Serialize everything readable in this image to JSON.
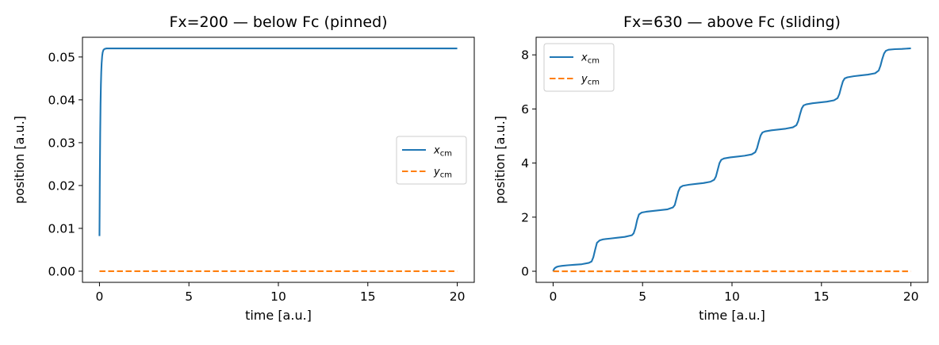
{
  "chart_data": [
    {
      "type": "line",
      "title": "Fx=200  — below Fc (pinned)",
      "xlabel": "time  [a.u.]",
      "ylabel": "position  [a.u.]",
      "xlim": [
        -0.95,
        20.95
      ],
      "ylim": [
        -0.0026,
        0.0546
      ],
      "xticks": [
        0,
        5,
        10,
        15,
        20
      ],
      "xtick_labels": [
        "0",
        "5",
        "10",
        "15",
        "20"
      ],
      "yticks": [
        0,
        0.01,
        0.02,
        0.03,
        0.04,
        0.05
      ],
      "ytick_labels": [
        "0.00",
        "0.01",
        "0.02",
        "0.03",
        "0.04",
        "0.05"
      ],
      "grid": false,
      "legend_position": "center-right",
      "series": [
        {
          "name": "x",
          "name_sub": "cm",
          "color": "#1f77b4",
          "dash": "solid",
          "x": [
            0,
            0.02,
            0.04,
            0.06,
            0.08,
            0.1,
            0.12,
            0.15,
            0.18,
            0.22,
            0.26,
            0.3,
            0.35,
            0.4,
            0.5,
            0.7,
            1,
            2,
            5,
            10,
            15,
            20
          ],
          "y": [
            0.0082,
            0.022,
            0.032,
            0.039,
            0.0435,
            0.0465,
            0.0485,
            0.0502,
            0.0511,
            0.0516,
            0.0518,
            0.0519,
            0.05195,
            0.052,
            0.052,
            0.052,
            0.052,
            0.052,
            0.052,
            0.052,
            0.052,
            0.052
          ]
        },
        {
          "name": "y",
          "name_sub": "cm",
          "color": "#ff7f0e",
          "dash": "dashed",
          "x": [
            0,
            20
          ],
          "y": [
            0,
            0
          ]
        }
      ]
    },
    {
      "type": "line",
      "title": "Fx=630  — above Fc (sliding)",
      "xlabel": "time  [a.u.]",
      "ylabel": "position  [a.u.]",
      "xlim": [
        -0.95,
        20.95
      ],
      "ylim": [
        -0.41,
        8.65
      ],
      "xticks": [
        0,
        5,
        10,
        15,
        20
      ],
      "xtick_labels": [
        "0",
        "5",
        "10",
        "15",
        "20"
      ],
      "yticks": [
        0,
        2,
        4,
        6,
        8
      ],
      "ytick_labels": [
        "0",
        "2",
        "4",
        "6",
        "8"
      ],
      "grid": false,
      "legend_position": "top-left",
      "series": [
        {
          "name": "x",
          "name_sub": "cm",
          "color": "#1f77b4",
          "dash": "solid",
          "x": [
            0,
            0.05,
            0.1,
            0.2,
            0.3,
            0.5,
            0.8,
            1.2,
            1.6,
            2.0,
            2.15,
            2.25,
            2.35,
            2.45,
            2.6,
            2.8,
            3.2,
            3.6,
            4.0,
            4.4,
            4.5,
            4.6,
            4.7,
            4.8,
            4.95,
            5.2,
            5.6,
            6.0,
            6.4,
            6.7,
            6.8,
            6.9,
            7.0,
            7.1,
            7.25,
            7.6,
            8.0,
            8.4,
            8.8,
            9.0,
            9.1,
            9.2,
            9.3,
            9.4,
            9.55,
            9.9,
            10.3,
            10.7,
            11.1,
            11.3,
            11.4,
            11.5,
            11.6,
            11.7,
            11.85,
            12.2,
            12.6,
            13.0,
            13.4,
            13.6,
            13.7,
            13.8,
            13.9,
            14.0,
            14.15,
            14.5,
            14.9,
            15.3,
            15.7,
            15.9,
            16.0,
            16.1,
            16.2,
            16.3,
            16.45,
            16.8,
            17.2,
            17.6,
            18.0,
            18.2,
            18.3,
            18.4,
            18.5,
            18.6,
            18.75,
            19.1,
            19.5,
            20.0
          ],
          "y": [
            0.0,
            0.08,
            0.12,
            0.16,
            0.18,
            0.2,
            0.22,
            0.24,
            0.26,
            0.31,
            0.36,
            0.52,
            0.8,
            1.05,
            1.14,
            1.18,
            1.21,
            1.24,
            1.27,
            1.33,
            1.4,
            1.6,
            1.9,
            2.1,
            2.17,
            2.2,
            2.23,
            2.26,
            2.29,
            2.36,
            2.45,
            2.7,
            2.95,
            3.1,
            3.16,
            3.2,
            3.23,
            3.26,
            3.31,
            3.38,
            3.5,
            3.75,
            4.0,
            4.12,
            4.17,
            4.21,
            4.24,
            4.27,
            4.32,
            4.4,
            4.55,
            4.8,
            5.02,
            5.13,
            5.17,
            5.21,
            5.24,
            5.27,
            5.32,
            5.4,
            5.55,
            5.8,
            6.02,
            6.13,
            6.17,
            6.21,
            6.24,
            6.27,
            6.32,
            6.4,
            6.55,
            6.8,
            7.02,
            7.13,
            7.17,
            7.21,
            7.24,
            7.27,
            7.32,
            7.42,
            7.6,
            7.85,
            8.05,
            8.15,
            8.19,
            8.21,
            8.22,
            8.24
          ]
        },
        {
          "name": "y",
          "name_sub": "cm",
          "color": "#ff7f0e",
          "dash": "dashed",
          "x": [
            0,
            20
          ],
          "y": [
            0,
            0
          ]
        }
      ]
    }
  ]
}
